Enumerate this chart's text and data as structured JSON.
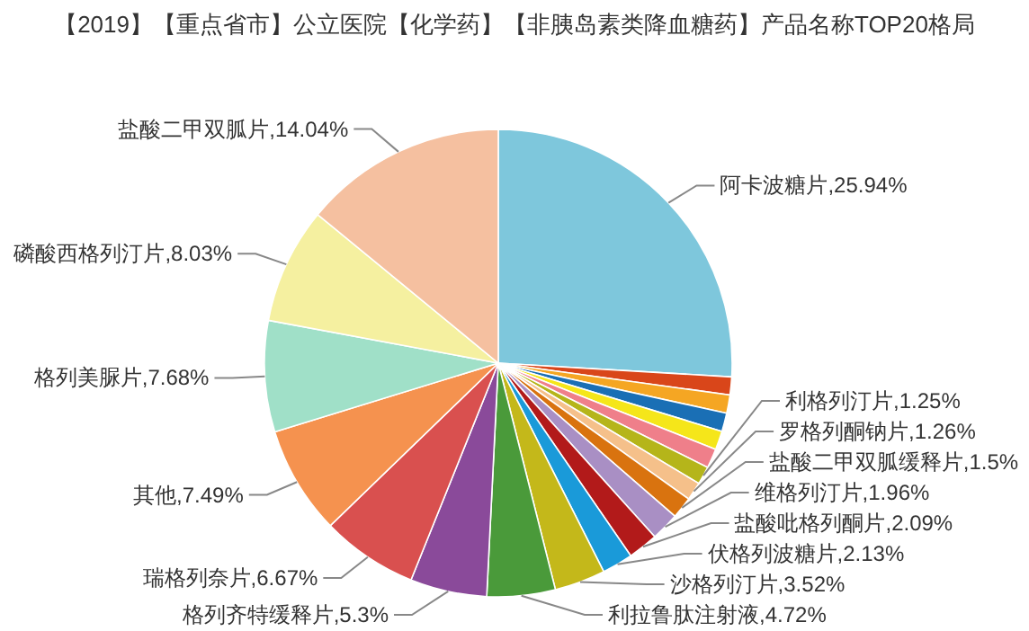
{
  "chart_data": {
    "type": "pie",
    "title": "【2019】【重点省市】公立医院【化学药】【非胰岛素类降血糖药】产品名称TOP20格局",
    "categories": [
      "阿卡波糖片",
      null,
      null,
      null,
      null,
      null,
      "利格列汀片",
      "罗格列酮钠片",
      "盐酸二甲双胍缓释片",
      "维格列汀片",
      "盐酸吡格列酮片",
      "伏格列波糖片",
      "沙格列汀片",
      "利拉鲁肽注射液",
      "格列齐特缓释片",
      "瑞格列奈片",
      "其他",
      "格列美脲片",
      "磷酸西格列汀片",
      "盐酸二甲双胍片"
    ],
    "values": [
      25.94,
      1.24,
      1.26,
      1.28,
      1.3,
      1.34,
      1.25,
      1.26,
      1.5,
      1.96,
      2.09,
      2.13,
      3.52,
      4.72,
      5.3,
      6.67,
      7.49,
      7.68,
      8.03,
      14.04
    ],
    "value_labels": [
      "25.94%",
      null,
      null,
      null,
      null,
      null,
      "1.25%",
      "1.26%",
      "1.5%",
      "1.96%",
      "2.09%",
      "2.13%",
      "3.52%",
      "4.72%",
      "5.3%",
      "6.67%",
      "7.49%",
      "7.68%",
      "8.03%",
      "14.04%"
    ],
    "colors": [
      "#7ec7dc",
      "#d9461a",
      "#f5a623",
      "#1a6fb5",
      "#f5e61a",
      "#ef7f8a",
      "#b5b51a",
      "#f5c08a",
      "#d9730f",
      "#a98fc4",
      "#b21a1a",
      "#1a9ad9",
      "#c4b81a",
      "#4a9a3a",
      "#8a4a9a",
      "#d9504f",
      "#f5924f",
      "#a0e0c8",
      "#f5f0a0",
      "#f5c0a0"
    ]
  }
}
